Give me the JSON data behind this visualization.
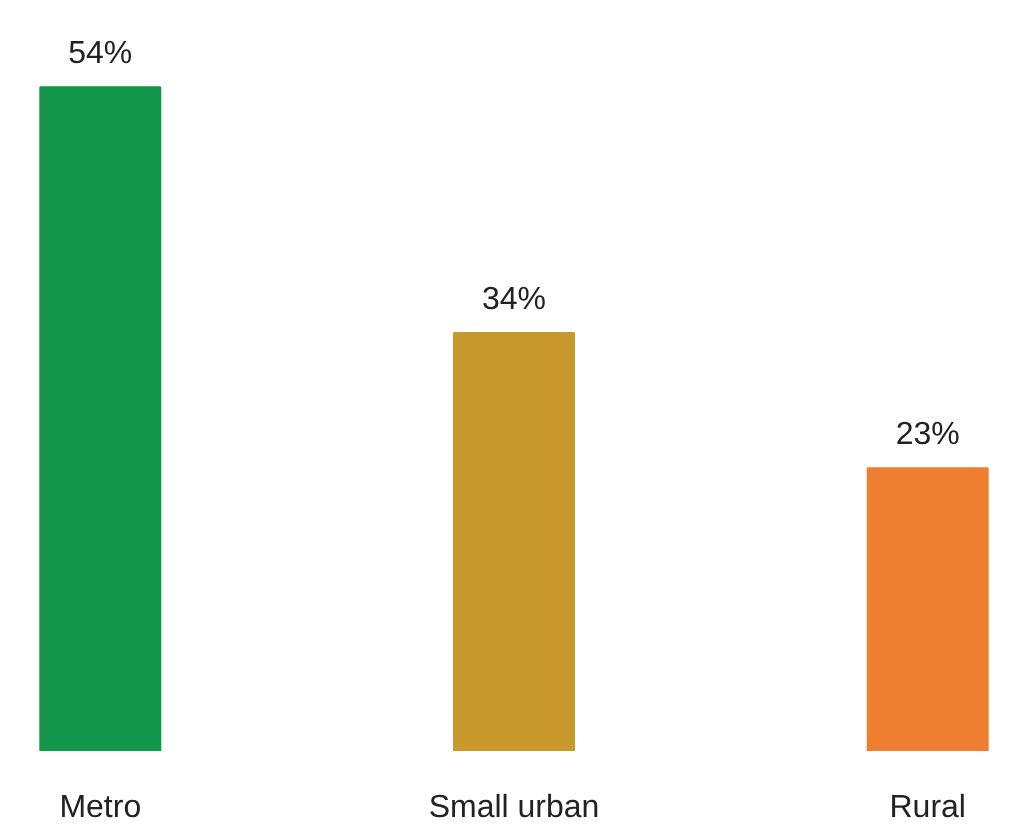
{
  "chart_data": {
    "type": "bar",
    "categories": [
      "Metro",
      "Small urban",
      "Rural"
    ],
    "values": [
      54,
      34,
      23
    ],
    "colors": [
      "#12964a",
      "#c89a2e",
      "#ee7f30"
    ],
    "value_labels": [
      "54%",
      "34%",
      "23%"
    ],
    "grid": false
  }
}
